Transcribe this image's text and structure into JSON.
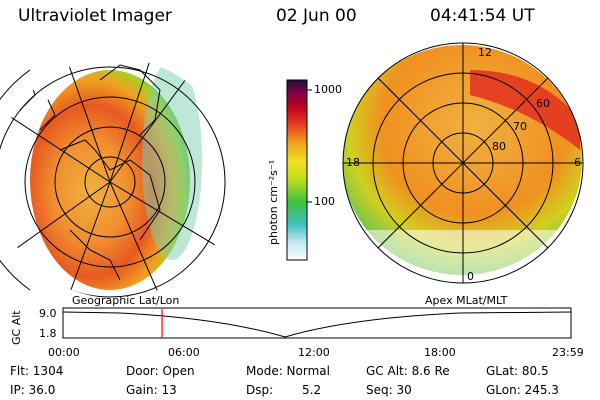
{
  "header": {
    "instrument": "Ultraviolet Imager",
    "date": "02 Jun 00",
    "time": "04:41:54 UT"
  },
  "colorbar": {
    "ticks": [
      "1000",
      "100"
    ],
    "unit": "photon cm⁻²s⁻¹"
  },
  "left_panel": {
    "caption": "Geographic Lat/Lon"
  },
  "right_panel": {
    "caption": "Apex MLat/MLT",
    "lat_labels": [
      "80",
      "70",
      "60"
    ],
    "mlt_labels": [
      "12",
      "18",
      "6",
      "0"
    ]
  },
  "timeline": {
    "ylabel": "GC Alt",
    "yticks": [
      "9.0",
      "1.8"
    ],
    "xticks": [
      "00:00",
      "06:00",
      "12:00",
      "18:00",
      "23:59"
    ],
    "marker_fraction": 0.195
  },
  "status": {
    "flt": "Flt: 1304",
    "ip": "IP: 36.0",
    "door": "Door: Open",
    "gain": "Gain: 13",
    "mode": "Mode: Normal",
    "dsp_label": "Dsp:",
    "dsp_value": "5.2",
    "gcalt": "GC Alt: 8.6 Re",
    "seq": "Seq: 30",
    "glat": "GLat: 80.5",
    "glon": "GLon: 245.3"
  },
  "colors": {
    "aurora_core": "#e03020",
    "aurora_mid": "#f5a020",
    "aurora_outer": "#40c040",
    "marker": "#ff0000"
  }
}
